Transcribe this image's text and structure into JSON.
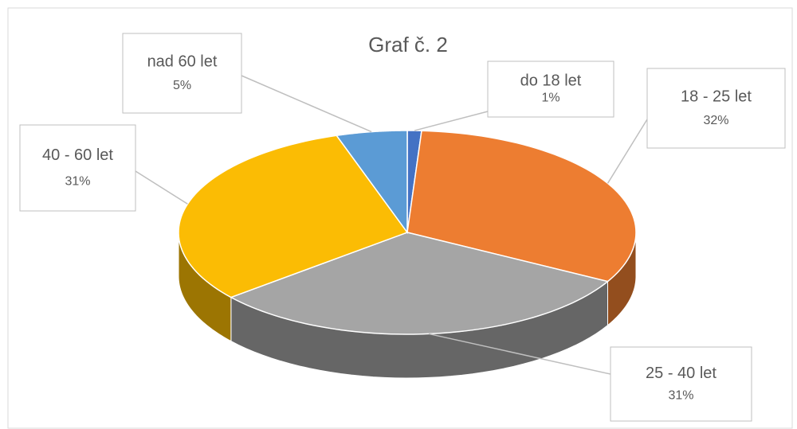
{
  "chart_data": {
    "type": "pie3d",
    "title": "Graf č. 2",
    "categories": [
      "do 18 let",
      "18 - 25 let",
      "25 - 40 let",
      "40 - 60 let",
      "nad 60 let"
    ],
    "values": [
      1,
      32,
      31,
      31,
      5
    ],
    "value_labels": [
      "1%",
      "32%",
      "31%",
      "31%",
      "5%"
    ],
    "colors": [
      "#4472c4",
      "#ed7d31",
      "#a5a5a5",
      "#fbbc04",
      "#5b9bd5"
    ]
  }
}
